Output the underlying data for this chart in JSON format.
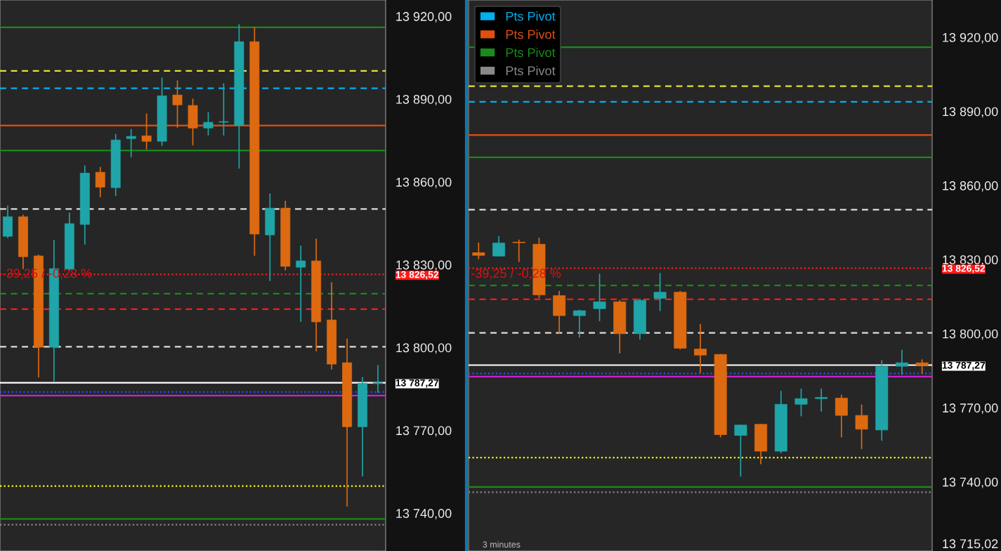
{
  "chart_data": [
    {
      "type": "candlestick",
      "tick_labels": "y",
      "ylim": [
        13726.3,
        13925.9
      ],
      "yticks": [
        {
          "value": 13740,
          "label": "13 740,00"
        },
        {
          "value": 13770,
          "label": "13 770,00"
        },
        {
          "value": 13800,
          "label": "13 800,00"
        },
        {
          "value": 13830,
          "label": "13 830,00"
        },
        {
          "value": 13860,
          "label": "13 860,00"
        },
        {
          "value": 13890,
          "label": "13 890,00"
        },
        {
          "value": 13920,
          "label": "13 920,00"
        },
        {
          "value": 13826.52,
          "label": "13 826,52"
        },
        {
          "value": 13787.27,
          "label": "13 787,27"
        }
      ],
      "categories": [
        null,
        null,
        null,
        null,
        null,
        null,
        null,
        null,
        null,
        null,
        null,
        null,
        null,
        null,
        null,
        null,
        null,
        null,
        null,
        null,
        null,
        null,
        null,
        null,
        null
      ],
      "ohlc": [
        [
          13840.3,
          13851.3,
          13839.8,
          13847.4
        ],
        [
          13847.4,
          13848.0,
          13828.6,
          13832.9
        ],
        [
          13833.2,
          13833.5,
          13789.4,
          13800.1
        ],
        [
          13800.1,
          13838.8,
          13787.9,
          13828.6
        ],
        [
          13828.4,
          13848.7,
          13828.1,
          13844.9
        ],
        [
          13844.6,
          13865.8,
          13837.5,
          13863.2
        ],
        [
          13863.5,
          13865.3,
          13854.6,
          13858.1
        ],
        [
          13857.9,
          13877.2,
          13855.1,
          13875.2
        ],
        [
          13875.7,
          13879.0,
          13869.1,
          13876.5
        ],
        [
          13876.7,
          13884.6,
          13871.9,
          13874.7
        ],
        [
          13874.7,
          13897.6,
          13873.2,
          13891.2
        ],
        [
          13891.5,
          13896.6,
          13879.8,
          13887.9
        ],
        [
          13887.7,
          13890.0,
          13873.4,
          13879.5
        ],
        [
          13879.5,
          13885.1,
          13877.0,
          13881.6
        ],
        [
          13881.6,
          13895.6,
          13877.0,
          13881.7
        ],
        [
          13880.5,
          13916.9,
          13865.0,
          13910.8
        ],
        [
          13910.8,
          13915.9,
          13833.4,
          13841.1
        ],
        [
          13840.8,
          13855.6,
          13824.3,
          13850.5
        ],
        [
          13850.5,
          13853.0,
          13828.1,
          13829.4
        ],
        [
          13829.1,
          13836.8,
          13809.5,
          13831.4
        ],
        [
          13831.4,
          13839.3,
          13798.8,
          13809.3
        ],
        [
          13810.0,
          13823.5,
          13792.2,
          13794.0
        ],
        [
          13794.5,
          13803.1,
          13742.6,
          13771.3
        ],
        [
          13771.3,
          13789.1,
          13753.5,
          13787.1
        ],
        [
          13786.9,
          13793.5,
          13783.8,
          13787.3
        ]
      ],
      "colors": [
        "#1fa5a8",
        "#dd6a10",
        "#dd6a10",
        "#1fa5a8",
        "#1fa5a8",
        "#1fa5a8",
        "#dd6a10",
        "#1fa5a8",
        "#1fa5a8",
        "#dd6a10",
        "#1fa5a8",
        "#dd6a10",
        "#dd6a10",
        "#1fa5a8",
        "#1fa5a8",
        "#1fa5a8",
        "#dd6a10",
        "#1fa5a8",
        "#dd6a10",
        "#1fa5a8",
        "#dd6a10",
        "#dd6a10",
        "#dd6a10",
        "#1fa5a8",
        "#1fa5a8"
      ],
      "ref_lines": [
        {
          "axis": "y",
          "value": 13916.0,
          "color": "#1a8a1a",
          "line_style": "solid"
        },
        {
          "axis": "y",
          "value": 13900.2,
          "color": "#e8e030",
          "line_style": "dashed"
        },
        {
          "axis": "y",
          "value": 13893.9,
          "color": "#00b0f0",
          "line_style": "dashed"
        },
        {
          "axis": "y",
          "value": 13880.4,
          "color": "#e05010",
          "line_style": "solid"
        },
        {
          "axis": "y",
          "value": 13871.4,
          "color": "#1a8a1a",
          "line_style": "solid"
        },
        {
          "axis": "y",
          "value": 13850.2,
          "color": "#dddddd",
          "line_style": "dashed"
        },
        {
          "axis": "y",
          "value": 13826.52,
          "color": "#ff1a1a",
          "line_style": "dotted"
        },
        {
          "axis": "y",
          "value": 13819.5,
          "color": "#1a8a1a",
          "line_style": "dashed"
        },
        {
          "axis": "y",
          "value": 13813.9,
          "color": "#ff1a1a",
          "line_style": "dashed"
        },
        {
          "axis": "y",
          "value": 13800.3,
          "color": "#dddddd",
          "line_style": "dashed"
        },
        {
          "axis": "y",
          "value": 13787.27,
          "color": "#ffffff",
          "line_style": "solid"
        },
        {
          "axis": "y",
          "value": 13783.9,
          "color": "#1060ff",
          "line_style": "dotted"
        },
        {
          "axis": "y",
          "value": 13782.6,
          "color": "#d020d0",
          "line_style": "solid"
        },
        {
          "axis": "y",
          "value": 13749.8,
          "color": "#ffff00",
          "line_style": "dotted"
        },
        {
          "axis": "y",
          "value": 13737.9,
          "color": "#1a8a1a",
          "line_style": "solid"
        },
        {
          "axis": "y",
          "value": 13735.8,
          "color": "#888888",
          "line_style": "dotted"
        }
      ],
      "annotations": [
        "-39,25 / -0,28 %"
      ]
    },
    {
      "type": "candlestick",
      "tick_labels": "y",
      "ylim": [
        13712.0,
        13935.1
      ],
      "legend": "top left",
      "yticks": [
        {
          "value": 13740,
          "label": "13 740,00"
        },
        {
          "value": 13770,
          "label": "13 770,00"
        },
        {
          "value": 13800,
          "label": "13 800,00"
        },
        {
          "value": 13830,
          "label": "13 830,00"
        },
        {
          "value": 13860,
          "label": "13 860,00"
        },
        {
          "value": 13890,
          "label": "13 890,00"
        },
        {
          "value": 13920,
          "label": "13 920,00"
        },
        {
          "value": 13826.52,
          "label": "13 826,52"
        },
        {
          "value": 13787.27,
          "label": "13 787,27"
        },
        {
          "value": 13715.02,
          "label": "13 715,02"
        }
      ],
      "categories": [
        null,
        null,
        null,
        null,
        null,
        null,
        null,
        null,
        null,
        null,
        null,
        null,
        null,
        null,
        null,
        null,
        null,
        null,
        null,
        null,
        null,
        null,
        null
      ],
      "ohlc": [
        [
          13832.8,
          13836.7,
          13830.3,
          13831.7
        ],
        [
          13831.4,
          13839.3,
          13831.4,
          13836.7
        ],
        [
          13837.0,
          13837.9,
          13829.2,
          13836.8
        ],
        [
          13836.2,
          13838.7,
          13814.6,
          13815.7
        ],
        [
          13815.4,
          13817.1,
          13800.3,
          13807.3
        ],
        [
          13807.3,
          13809.5,
          13798.6,
          13809.3
        ],
        [
          13810.1,
          13824.1,
          13805.3,
          13812.9
        ],
        [
          13812.9,
          13813.5,
          13792.2,
          13800.0
        ],
        [
          13800.0,
          13814.0,
          13797.8,
          13813.5
        ],
        [
          13814.3,
          13824.4,
          13809.3,
          13816.8
        ],
        [
          13816.8,
          13817.1,
          13793.8,
          13794.1
        ],
        [
          13793.8,
          13803.7,
          13784.3,
          13791.3
        ],
        [
          13791.6,
          13791.6,
          13758.2,
          13759.1
        ],
        [
          13758.8,
          13763.0,
          13742.3,
          13763.0
        ],
        [
          13763.3,
          13763.3,
          13747.3,
          13752.4
        ],
        [
          13752.4,
          13776.7,
          13751.8,
          13771.4
        ],
        [
          13771.4,
          13777.6,
          13766.7,
          13773.7
        ],
        [
          13773.7,
          13777.6,
          13768.6,
          13774.2
        ],
        [
          13773.9,
          13775.1,
          13758.2,
          13766.9
        ],
        [
          13766.9,
          13771.1,
          13753.5,
          13761.3
        ],
        [
          13761.0,
          13789.1,
          13756.8,
          13786.8
        ],
        [
          13786.8,
          13793.3,
          13783.5,
          13788.2
        ],
        [
          13788.2,
          13789.4,
          13784.0,
          13787.1
        ]
      ],
      "colors": [
        "#dd6a10",
        "#1fa5a8",
        "#dd6a10",
        "#dd6a10",
        "#dd6a10",
        "#1fa5a8",
        "#1fa5a8",
        "#dd6a10",
        "#1fa5a8",
        "#1fa5a8",
        "#dd6a10",
        "#dd6a10",
        "#dd6a10",
        "#1fa5a8",
        "#dd6a10",
        "#1fa5a8",
        "#1fa5a8",
        "#1fa5a8",
        "#dd6a10",
        "#dd6a10",
        "#1fa5a8",
        "#1fa5a8",
        "#dd6a10"
      ],
      "ref_lines": [
        {
          "axis": "y",
          "value": 13916.0,
          "color": "#1a8a1a",
          "line_style": "solid"
        },
        {
          "axis": "y",
          "value": 13900.2,
          "color": "#e8e030",
          "line_style": "dashed"
        },
        {
          "axis": "y",
          "value": 13893.9,
          "color": "#00b0f0",
          "line_style": "dashed",
          "label": "Pts Pivot"
        },
        {
          "axis": "y",
          "value": 13880.4,
          "color": "#e05010",
          "line_style": "solid",
          "label": "Pts Pivot"
        },
        {
          "axis": "y",
          "value": 13871.4,
          "color": "#1a8a1a",
          "line_style": "solid",
          "label": "Pts Pivot"
        },
        {
          "axis": "y",
          "value": 13850.2,
          "color": "#dddddd",
          "line_style": "dashed"
        },
        {
          "axis": "y",
          "value": 13826.52,
          "color": "#ff1a1a",
          "line_style": "dotted"
        },
        {
          "axis": "y",
          "value": 13819.5,
          "color": "#1a8a1a",
          "line_style": "dashed"
        },
        {
          "axis": "y",
          "value": 13813.9,
          "color": "#ff1a1a",
          "line_style": "dashed"
        },
        {
          "axis": "y",
          "value": 13800.3,
          "color": "#dddddd",
          "line_style": "dashed"
        },
        {
          "axis": "y",
          "value": 13787.27,
          "color": "#ffffff",
          "line_style": "solid"
        },
        {
          "axis": "y",
          "value": 13783.9,
          "color": "#1060ff",
          "line_style": "dotted"
        },
        {
          "axis": "y",
          "value": 13782.6,
          "color": "#d020d0",
          "line_style": "solid"
        },
        {
          "axis": "y",
          "value": 13749.8,
          "color": "#ffff00",
          "line_style": "dotted"
        },
        {
          "axis": "y",
          "value": 13737.9,
          "color": "#1a8a1a",
          "line_style": "solid"
        },
        {
          "axis": "y",
          "value": 13735.8,
          "color": "#888888",
          "line_style": "dotted",
          "label": "Pts Pivot"
        }
      ],
      "annotations": [
        "-39,25 / -0,28 %",
        "3 minutes"
      ]
    }
  ]
}
